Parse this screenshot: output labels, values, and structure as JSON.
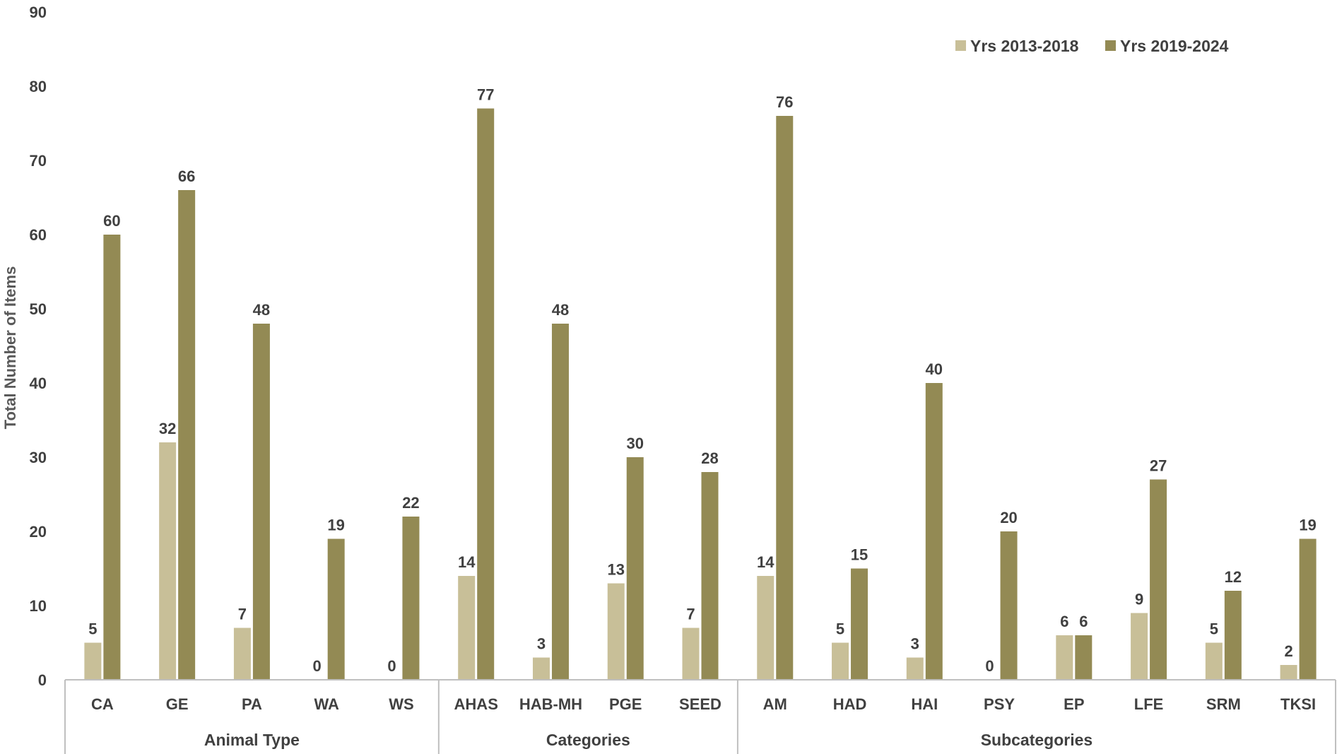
{
  "chart_data": {
    "type": "bar",
    "ylabel": "Total Number of Items",
    "xlabel": "",
    "ylim": [
      0,
      90
    ],
    "yticks": [
      0,
      10,
      20,
      30,
      40,
      50,
      60,
      70,
      80,
      90
    ],
    "grid": false,
    "legend_position": "top-right",
    "categories": [
      "CA",
      "GE",
      "PA",
      "WA",
      "WS",
      "AHAS",
      "HAB-MH",
      "PGE",
      "SEED",
      "AM",
      "HAD",
      "HAI",
      "PSY",
      "EP",
      "LFE",
      "SRM",
      "TKSI"
    ],
    "groups": [
      {
        "label": "Animal Type",
        "categories": [
          "CA",
          "GE",
          "PA",
          "WA",
          "WS"
        ]
      },
      {
        "label": "Categories",
        "categories": [
          "AHAS",
          "HAB-MH",
          "PGE",
          "SEED"
        ]
      },
      {
        "label": "Subcategories",
        "categories": [
          "AM",
          "HAD",
          "HAI",
          "PSY",
          "EP",
          "LFE",
          "SRM",
          "TKSI"
        ]
      }
    ],
    "series": [
      {
        "name": "Yrs 2013-2018",
        "color": "#c8bf98",
        "values": [
          5,
          32,
          7,
          0,
          0,
          14,
          3,
          13,
          7,
          14,
          5,
          3,
          0,
          6,
          9,
          5,
          2
        ]
      },
      {
        "name": "Yrs 2019-2024",
        "color": "#938a54",
        "values": [
          60,
          66,
          48,
          19,
          22,
          77,
          48,
          30,
          28,
          76,
          15,
          40,
          20,
          6,
          27,
          12,
          19
        ]
      }
    ]
  },
  "colors": {
    "axis": "#bfbfbf",
    "text": "#404040"
  }
}
